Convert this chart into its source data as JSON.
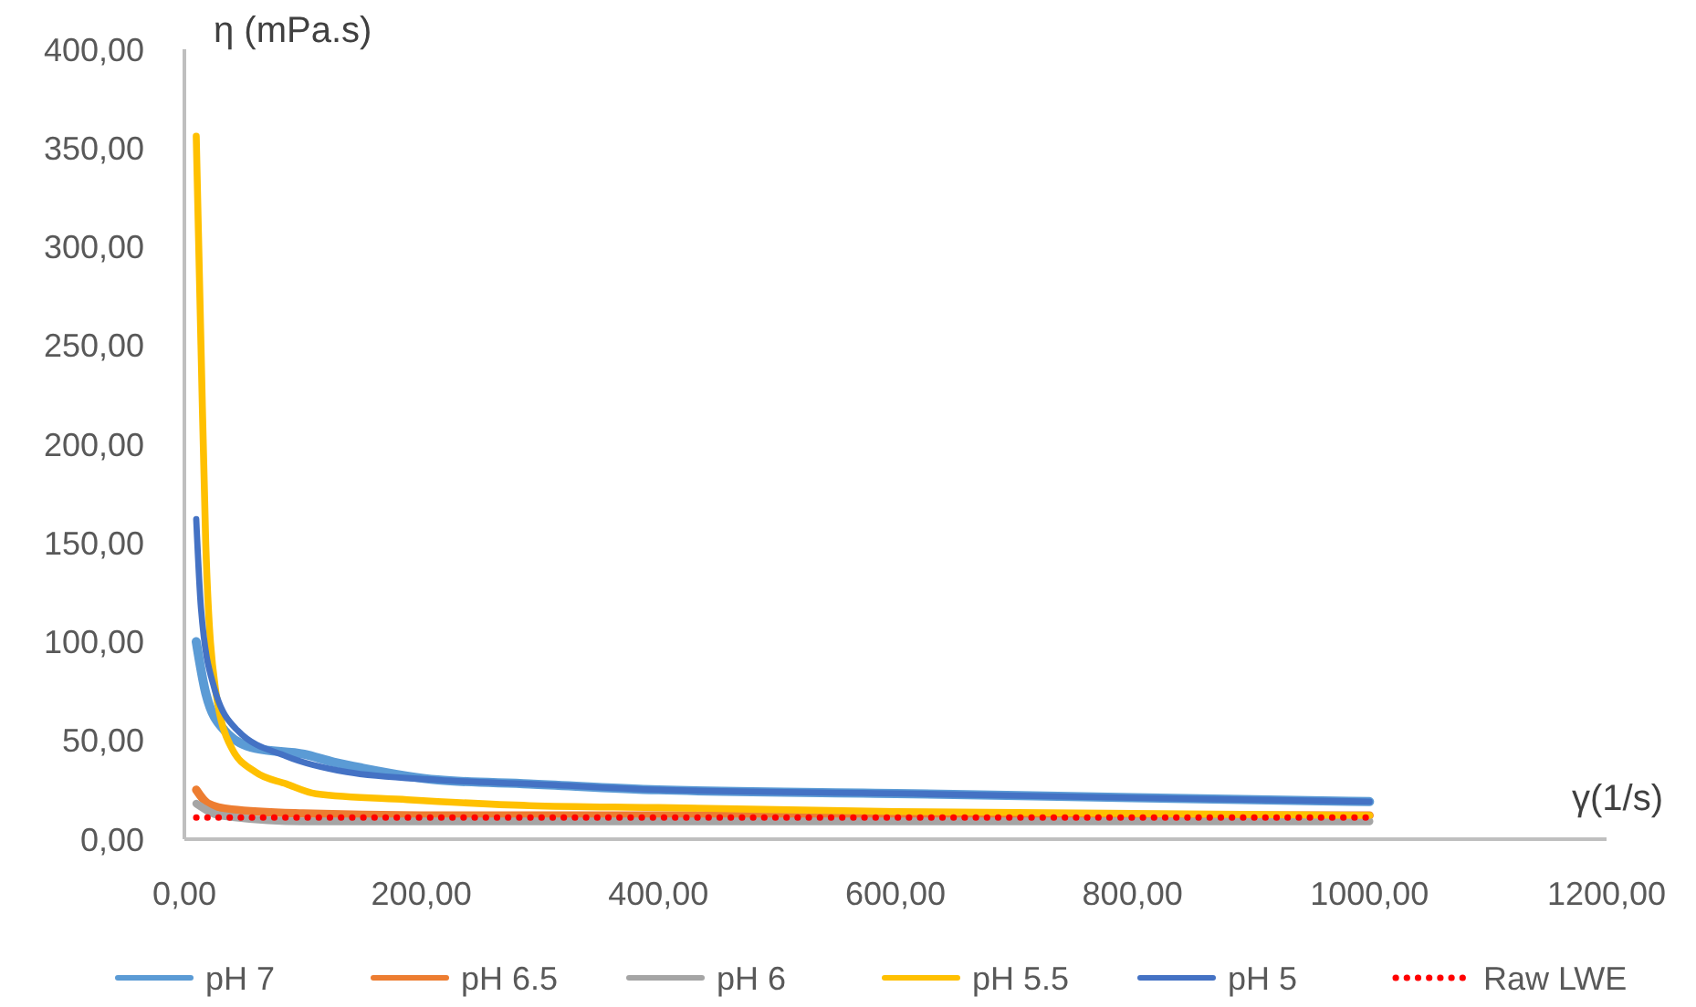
{
  "chart_data": {
    "type": "line",
    "xlabel": "γ(1/s)",
    "ylabel": "η (mPa.s)",
    "xlim": [
      0,
      1200
    ],
    "ylim": [
      0,
      400
    ],
    "xticks": [
      {
        "value": 0,
        "label": "0,00"
      },
      {
        "value": 200,
        "label": "200,00"
      },
      {
        "value": 400,
        "label": "400,00"
      },
      {
        "value": 600,
        "label": "600,00"
      },
      {
        "value": 800,
        "label": "800,00"
      },
      {
        "value": 1000,
        "label": "1000,00"
      },
      {
        "value": 1200,
        "label": "1200,00"
      }
    ],
    "yticks": [
      {
        "value": 0,
        "label": "0,00"
      },
      {
        "value": 50,
        "label": "50,00"
      },
      {
        "value": 100,
        "label": "100,00"
      },
      {
        "value": 150,
        "label": "150,00"
      },
      {
        "value": 200,
        "label": "200,00"
      },
      {
        "value": 250,
        "label": "250,00"
      },
      {
        "value": 300,
        "label": "300,00"
      },
      {
        "value": 350,
        "label": "350,00"
      },
      {
        "value": 400,
        "label": "400,00"
      }
    ],
    "grid": false,
    "legend": "bottom",
    "marker": "none",
    "series": [
      {
        "name": "pH 7",
        "color": "#5b9bd5",
        "x": [
          10,
          18,
          34,
          60,
          101,
          126,
          150,
          214,
          291,
          400,
          615,
          800,
          1000
        ],
        "values": [
          100,
          74,
          55,
          46,
          43,
          39,
          36,
          30,
          28,
          25,
          23,
          21,
          19
        ]
      },
      {
        "name": "pH 6.5",
        "color": "#ed7d31",
        "x": [
          10,
          20,
          40,
          100,
          200,
          400,
          600,
          800,
          1000
        ],
        "values": [
          25,
          18,
          15,
          13,
          12,
          12,
          12,
          12,
          12
        ]
      },
      {
        "name": "pH 6",
        "color": "#a5a5a5",
        "x": [
          10,
          30,
          100,
          200,
          400,
          600,
          800,
          1000
        ],
        "values": [
          18,
          12,
          9,
          9,
          9,
          9,
          9,
          9
        ]
      },
      {
        "name": "pH 5.5",
        "color": "#ffc000",
        "x": [
          10,
          14,
          18,
          26,
          40,
          60,
          86,
          111,
          188,
          291,
          400,
          600,
          800,
          1000
        ],
        "values": [
          356,
          250,
          150,
          77,
          46,
          34,
          28,
          23,
          20,
          17,
          16,
          14,
          13,
          12
        ]
      },
      {
        "name": "pH 5",
        "color": "#4472c4",
        "x": [
          10,
          14,
          25,
          45,
          86,
          137,
          214,
          291,
          400,
          615,
          800,
          1000
        ],
        "values": [
          162,
          117,
          77,
          55,
          42,
          34,
          30,
          28,
          25,
          23,
          21,
          19
        ]
      },
      {
        "name": "Raw LWE",
        "color": "#ff0000",
        "line_style": "dotted",
        "x": [
          10,
          200,
          400,
          600,
          800,
          1000
        ],
        "values": [
          11,
          11,
          11,
          11,
          11,
          11
        ]
      }
    ]
  }
}
